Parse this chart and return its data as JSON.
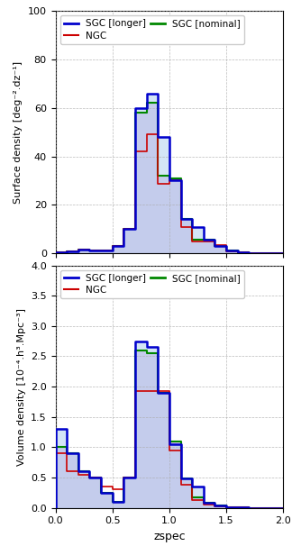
{
  "bins": [
    0.0,
    0.1,
    0.2,
    0.3,
    0.4,
    0.5,
    0.6,
    0.7,
    0.8,
    0.9,
    1.0,
    1.1,
    1.2,
    1.3,
    1.4,
    1.5,
    1.6,
    1.7,
    1.8,
    1.9,
    2.0
  ],
  "sgc_longer_surface": [
    0.5,
    0.8,
    1.5,
    1.0,
    1.0,
    3.0,
    10.0,
    60.0,
    66.0,
    48.0,
    30.0,
    14.0,
    11.0,
    5.5,
    3.0,
    1.0,
    0.5,
    0.2,
    0.1,
    0.0
  ],
  "sgc_nominal_surface": [
    0.5,
    0.8,
    1.5,
    1.0,
    1.0,
    3.0,
    10.0,
    58.0,
    62.0,
    32.0,
    31.0,
    14.0,
    5.5,
    5.5,
    3.0,
    1.0,
    0.5,
    0.2,
    0.1,
    0.0
  ],
  "ngc_surface": [
    0.5,
    0.8,
    1.5,
    1.0,
    1.0,
    3.0,
    10.0,
    42.0,
    49.0,
    28.5,
    30.0,
    11.0,
    5.0,
    5.0,
    3.5,
    0.8,
    0.5,
    0.2,
    0.1,
    0.0
  ],
  "sgc_longer_volume": [
    1.3,
    0.9,
    0.6,
    0.5,
    0.25,
    0.1,
    0.5,
    2.75,
    2.65,
    1.9,
    1.05,
    0.48,
    0.35,
    0.08,
    0.04,
    0.01,
    0.005,
    0.001,
    0.001,
    0.0
  ],
  "sgc_nominal_volume": [
    1.0,
    0.9,
    0.6,
    0.5,
    0.25,
    0.1,
    0.5,
    2.6,
    2.55,
    1.9,
    1.1,
    0.48,
    0.17,
    0.08,
    0.04,
    0.01,
    0.005,
    0.001,
    0.001,
    0.0
  ],
  "ngc_volume": [
    0.9,
    0.6,
    0.55,
    0.5,
    0.35,
    0.3,
    0.5,
    1.93,
    1.93,
    1.93,
    0.95,
    0.38,
    0.13,
    0.06,
    0.03,
    0.01,
    0.005,
    0.001,
    0.001,
    0.0
  ],
  "color_sgc_longer": "#0000cc",
  "color_sgc_nominal": "#008800",
  "color_ngc": "#cc0000",
  "color_fill_purple": "#ccaadd",
  "color_fill_blue": "#aaccee",
  "xlim": [
    0.0,
    2.0
  ],
  "ylim_surface": [
    0,
    100
  ],
  "ylim_volume": [
    0,
    4.0
  ],
  "xlabel": "zspec",
  "ylabel_surface": "Surface density [deg⁻².dz⁻¹]",
  "ylabel_volume": "Volume density [10⁻⁴.h³.Mpc⁻³]",
  "yticks_surface": [
    0,
    20,
    40,
    60,
    80,
    100
  ],
  "yticks_volume": [
    0.0,
    0.5,
    1.0,
    1.5,
    2.0,
    2.5,
    3.0,
    3.5,
    4.0
  ],
  "xticks": [
    0.0,
    0.5,
    1.0,
    1.5,
    2.0
  ]
}
